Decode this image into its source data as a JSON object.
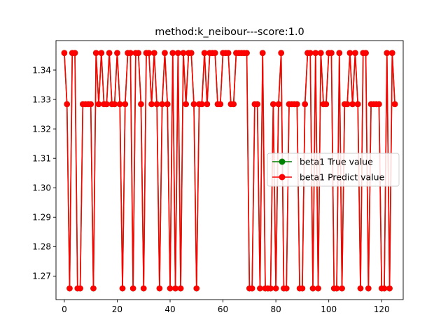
{
  "chart_data": {
    "type": "line",
    "title": "method:k_neibour---score:1.0",
    "xlabel": "",
    "ylabel": "",
    "xlim": [
      -3.15,
      128.15
    ],
    "ylim": [
      1.262,
      1.35
    ],
    "x_ticks": [
      0,
      20,
      40,
      60,
      80,
      100,
      120
    ],
    "y_ticks": [
      1.27,
      1.28,
      1.29,
      1.3,
      1.31,
      1.32,
      1.33,
      1.34
    ],
    "y_tick_labels": [
      "1.27",
      "1.28",
      "1.29",
      "1.30",
      "1.31",
      "1.32",
      "1.33",
      "1.34"
    ],
    "grid": false,
    "legend_position": "center-right",
    "series": [
      {
        "name": "beta1 True value",
        "color": "#008000",
        "marker": "circle",
        "values": [
          1.3458,
          1.3284,
          1.2658,
          1.3458,
          1.3458,
          1.2658,
          1.2658,
          1.3284,
          1.3284,
          1.3284,
          1.3284,
          1.2658,
          1.3458,
          1.3284,
          1.3458,
          1.3284,
          1.3284,
          1.3458,
          1.3284,
          1.3284,
          1.3458,
          1.3284,
          1.2658,
          1.3284,
          1.3458,
          1.3458,
          1.2658,
          1.3458,
          1.3458,
          1.3284,
          1.2658,
          1.3458,
          1.3458,
          1.3284,
          1.3458,
          1.3284,
          1.2658,
          1.3284,
          1.3458,
          1.3284,
          1.2658,
          1.3458,
          1.2658,
          1.3458,
          1.2658,
          1.3458,
          1.3284,
          1.3458,
          1.3458,
          1.3284,
          1.2658,
          1.3284,
          1.3284,
          1.3458,
          1.3284,
          1.3458,
          1.3458,
          1.3458,
          1.3284,
          1.3284,
          1.3458,
          1.3458,
          1.3458,
          1.3284,
          1.3284,
          1.3458,
          1.3458,
          1.3458,
          1.3458,
          1.3458,
          1.2658,
          1.2658,
          1.3284,
          1.3284,
          1.2658,
          1.3458,
          1.2658,
          1.2658,
          1.2658,
          1.3284,
          1.2658,
          1.3284,
          1.3458,
          1.2658,
          1.2658,
          1.3284,
          1.3284,
          1.3284,
          1.3284,
          1.2658,
          1.2658,
          1.3284,
          1.3458,
          1.3458,
          1.2658,
          1.3458,
          1.2658,
          1.3458,
          1.3284,
          1.3284,
          1.3458,
          1.3458,
          1.2658,
          1.2658,
          1.3458,
          1.2658,
          1.3284,
          1.3284,
          1.3458,
          1.3284,
          1.3458,
          1.3284,
          1.2658,
          1.3458,
          1.3458,
          1.2658,
          1.3284,
          1.3284,
          1.3284,
          1.3284,
          1.2658,
          1.2658,
          1.3458,
          1.2658,
          1.3458,
          1.3284
        ]
      },
      {
        "name": "beta1 Predict value",
        "color": "#ff0000",
        "marker": "circle",
        "values": [
          1.3458,
          1.3284,
          1.2658,
          1.3458,
          1.3458,
          1.2658,
          1.2658,
          1.3284,
          1.3284,
          1.3284,
          1.3284,
          1.2658,
          1.3458,
          1.3284,
          1.3458,
          1.3284,
          1.3284,
          1.3458,
          1.3284,
          1.3284,
          1.3458,
          1.3284,
          1.2658,
          1.3284,
          1.3458,
          1.3458,
          1.2658,
          1.3458,
          1.3458,
          1.3284,
          1.2658,
          1.3458,
          1.3458,
          1.3284,
          1.3458,
          1.3284,
          1.2658,
          1.3284,
          1.3458,
          1.3284,
          1.2658,
          1.3458,
          1.2658,
          1.3458,
          1.2658,
          1.3458,
          1.3284,
          1.3458,
          1.3458,
          1.3284,
          1.2658,
          1.3284,
          1.3284,
          1.3458,
          1.3284,
          1.3458,
          1.3458,
          1.3458,
          1.3284,
          1.3284,
          1.3458,
          1.3458,
          1.3458,
          1.3284,
          1.3284,
          1.3458,
          1.3458,
          1.3458,
          1.3458,
          1.3458,
          1.2658,
          1.2658,
          1.3284,
          1.3284,
          1.2658,
          1.3458,
          1.2658,
          1.2658,
          1.2658,
          1.3284,
          1.2658,
          1.3284,
          1.3458,
          1.2658,
          1.2658,
          1.3284,
          1.3284,
          1.3284,
          1.3284,
          1.2658,
          1.2658,
          1.3284,
          1.3458,
          1.3458,
          1.2658,
          1.3458,
          1.2658,
          1.3458,
          1.3284,
          1.3284,
          1.3458,
          1.3458,
          1.2658,
          1.2658,
          1.3458,
          1.2658,
          1.3284,
          1.3284,
          1.3458,
          1.3284,
          1.3458,
          1.3284,
          1.2658,
          1.3458,
          1.3458,
          1.2658,
          1.3284,
          1.3284,
          1.3284,
          1.3284,
          1.2658,
          1.2658,
          1.3458,
          1.2658,
          1.3458,
          1.3284
        ]
      }
    ]
  }
}
